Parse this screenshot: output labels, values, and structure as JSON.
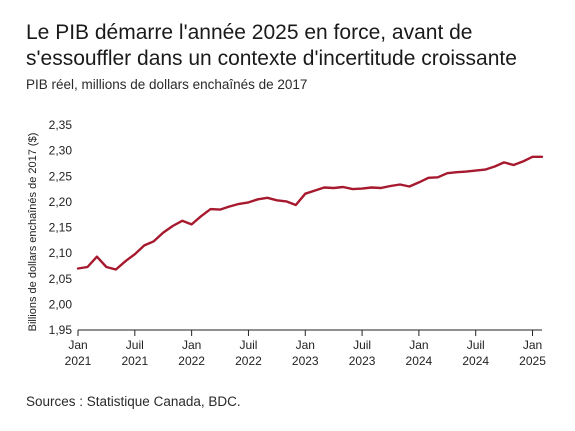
{
  "header": {
    "title_line1": "Le PIB démarre l'année 2025 en force, avant de",
    "title_line2": "s'essouffler dans un contexte d'incertitude croissante",
    "subtitle": "PIB réel, millions de dollars enchaînés de 2017"
  },
  "footer": {
    "sources": "Sources : Statistique Canada, BDC."
  },
  "colors": {
    "line": "#a6192e",
    "axis": "#222222",
    "gridline": "#d0d0d0"
  },
  "chart_data": {
    "type": "line",
    "ylabel": "Billions de dollars enchaînés de 2017 ($)",
    "ylim": [
      1.95,
      2.35
    ],
    "yticks": [
      "1,95",
      "2,00",
      "2,05",
      "2,10",
      "2,15",
      "2,20",
      "2,25",
      "2,30",
      "2,35"
    ],
    "grid": false,
    "xticks": [
      {
        "month": "Jan",
        "year": "2021",
        "date": "2021-01"
      },
      {
        "month": "Juil",
        "year": "2021",
        "date": "2021-07"
      },
      {
        "month": "Jan",
        "year": "2022",
        "date": "2022-01"
      },
      {
        "month": "Juil",
        "year": "2022",
        "date": "2022-07"
      },
      {
        "month": "Jan",
        "year": "2023",
        "date": "2023-01"
      },
      {
        "month": "Juil",
        "year": "2023",
        "date": "2023-07"
      },
      {
        "month": "Jan",
        "year": "2024",
        "date": "2024-01"
      },
      {
        "month": "Juil",
        "year": "2024",
        "date": "2024-07"
      },
      {
        "month": "Jan",
        "year": "2025",
        "date": "2025-01"
      }
    ],
    "series": [
      {
        "x": [
          "2021-01",
          "2021-02",
          "2021-03",
          "2021-04",
          "2021-05",
          "2021-06",
          "2021-07",
          "2021-08",
          "2021-09",
          "2021-10",
          "2021-11",
          "2021-12",
          "2022-01",
          "2022-02",
          "2022-03",
          "2022-04",
          "2022-05",
          "2022-06",
          "2022-07",
          "2022-08",
          "2022-09",
          "2022-10",
          "2022-11",
          "2022-12",
          "2023-01",
          "2023-02",
          "2023-03",
          "2023-04",
          "2023-05",
          "2023-06",
          "2023-07",
          "2023-08",
          "2023-09",
          "2023-10",
          "2023-11",
          "2023-12",
          "2024-01",
          "2024-02",
          "2024-03",
          "2024-04",
          "2024-05",
          "2024-06",
          "2024-07",
          "2024-08",
          "2024-09",
          "2024-10",
          "2024-11",
          "2024-12",
          "2025-01",
          "2025-02"
        ],
        "values": [
          2.07,
          2.073,
          2.093,
          2.073,
          2.068,
          2.084,
          2.098,
          2.115,
          2.123,
          2.14,
          2.153,
          2.163,
          2.156,
          2.172,
          2.186,
          2.185,
          2.191,
          2.196,
          2.199,
          2.205,
          2.208,
          2.203,
          2.201,
          2.194,
          2.216,
          2.222,
          2.228,
          2.227,
          2.229,
          2.225,
          2.226,
          2.228,
          2.227,
          2.231,
          2.234,
          2.23,
          2.238,
          2.247,
          2.248,
          2.256,
          2.258,
          2.259,
          2.261,
          2.263,
          2.269,
          2.277,
          2.272,
          2.279,
          2.288,
          2.288
        ]
      }
    ]
  }
}
